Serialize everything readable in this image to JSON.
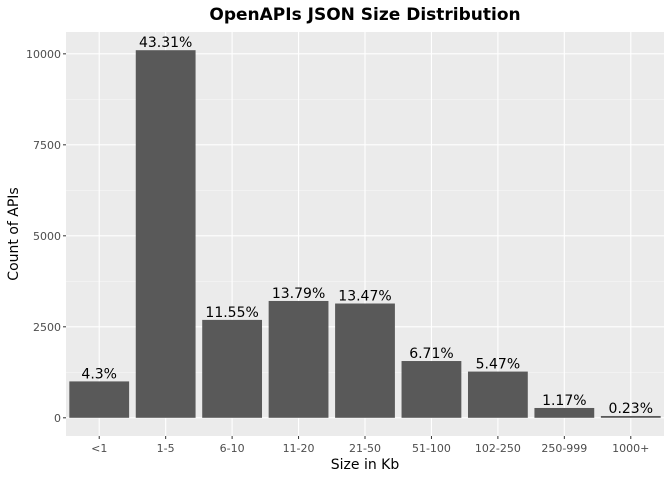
{
  "chart_data": {
    "type": "bar",
    "title": "OpenAPIs JSON Size Distribution",
    "xlabel": "Size in Kb",
    "ylabel": "Count of APIs",
    "categories": [
      "<1",
      "1-5",
      "6-10",
      "11-20",
      "21-50",
      "51-100",
      "102-250",
      "250-999",
      "1000+"
    ],
    "values": [
      1000,
      10100,
      2690,
      3210,
      3140,
      1560,
      1270,
      270,
      50
    ],
    "data_labels": [
      "4.3%",
      "43.31%",
      "11.55%",
      "13.79%",
      "13.47%",
      "6.71%",
      "5.47%",
      "1.17%",
      "0.23%"
    ],
    "y_ticks": [
      0,
      2500,
      5000,
      7500,
      10000
    ],
    "y_tick_labels": [
      "0",
      "2500",
      "5000",
      "7500",
      "10000"
    ],
    "ylim": [
      -500,
      10600
    ],
    "grid": true,
    "legend": "none",
    "colors": {
      "bar": "#595959",
      "panel": "#ebebeb",
      "grid_major": "#ffffff",
      "grid_minor": "#f5f5f5",
      "tick": "#333333"
    }
  }
}
